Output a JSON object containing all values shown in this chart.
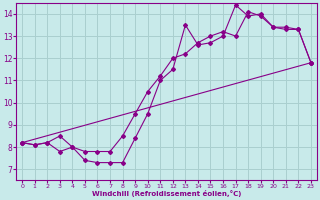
{
  "xlabel": "Windchill (Refroidissement éolien,°C)",
  "bg_color": "#c8eaea",
  "grid_color": "#aacfcf",
  "line_color": "#880088",
  "xlim": [
    -0.5,
    23.5
  ],
  "ylim": [
    6.5,
    14.5
  ],
  "xticks": [
    0,
    1,
    2,
    3,
    4,
    5,
    6,
    7,
    8,
    9,
    10,
    11,
    12,
    13,
    14,
    15,
    16,
    17,
    18,
    19,
    20,
    21,
    22,
    23
  ],
  "yticks": [
    7,
    8,
    9,
    10,
    11,
    12,
    13,
    14
  ],
  "series1_x": [
    0,
    1,
    2,
    3,
    4,
    5,
    6,
    7,
    8,
    9,
    10,
    11,
    12,
    13,
    14,
    15,
    16,
    17,
    18,
    19,
    20,
    21,
    22,
    23
  ],
  "series1_y": [
    8.2,
    8.1,
    8.2,
    7.8,
    8.0,
    7.4,
    7.3,
    7.3,
    7.3,
    8.4,
    9.5,
    11.0,
    11.5,
    13.5,
    12.6,
    12.7,
    13.0,
    14.4,
    13.9,
    14.0,
    13.4,
    13.3,
    13.3,
    11.8
  ],
  "series2_x": [
    0,
    1,
    2,
    3,
    4,
    5,
    6,
    7,
    8,
    9,
    10,
    11,
    12,
    13,
    14,
    15,
    16,
    17,
    18,
    19,
    20,
    21,
    22,
    23
  ],
  "series2_y": [
    8.2,
    8.1,
    8.2,
    8.5,
    8.0,
    7.8,
    7.8,
    7.8,
    8.5,
    9.5,
    10.5,
    11.2,
    12.0,
    12.2,
    12.7,
    13.0,
    13.2,
    13.0,
    14.1,
    13.9,
    13.4,
    13.4,
    13.3,
    11.8
  ],
  "series3_x": [
    0,
    23
  ],
  "series3_y": [
    8.2,
    11.8
  ]
}
